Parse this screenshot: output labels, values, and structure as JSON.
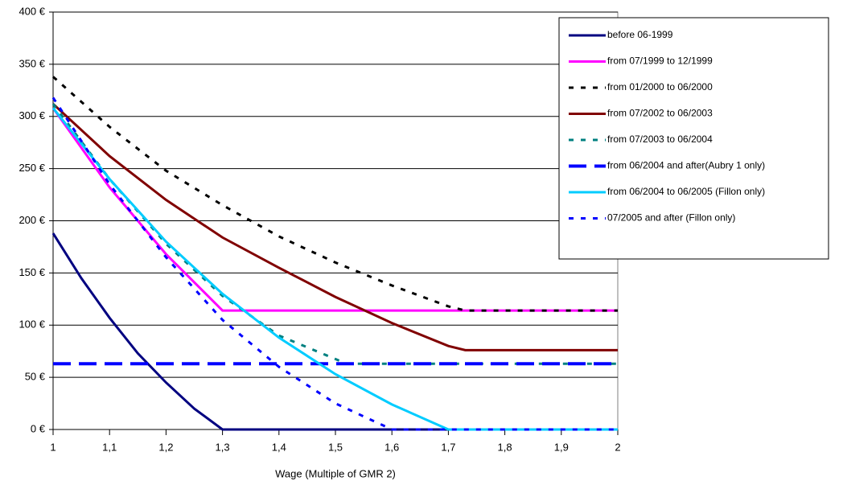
{
  "chart_data": {
    "type": "line",
    "x_label": "Wage (Multiple of GMR 2)",
    "xlim": [
      1,
      2
    ],
    "xticks": [
      1,
      {
        "value": 1.1,
        "label": "1,1"
      },
      {
        "value": 1.2,
        "label": "1,2"
      },
      {
        "value": 1.3,
        "label": "1,3"
      },
      {
        "value": 1.4,
        "label": "1,4"
      },
      {
        "value": 1.5,
        "label": "1,5"
      },
      {
        "value": 1.6,
        "label": "1,6"
      },
      {
        "value": 1.7,
        "label": "1,7"
      },
      {
        "value": 1.8,
        "label": "1,8"
      },
      {
        "value": 1.9,
        "label": "1,9"
      },
      2
    ],
    "ylim": [
      0,
      400
    ],
    "yticks": [
      {
        "value": 0,
        "label": "0 €"
      },
      {
        "value": 50,
        "label": "50 €"
      },
      {
        "value": 100,
        "label": "100 €"
      },
      {
        "value": 150,
        "label": "150 €"
      },
      {
        "value": 200,
        "label": "200 €"
      },
      {
        "value": 250,
        "label": "250 €"
      },
      {
        "value": 300,
        "label": "300 €"
      },
      {
        "value": 350,
        "label": "350 €"
      },
      {
        "value": 400,
        "label": "400 €"
      }
    ],
    "grid": true,
    "legend": "top-right",
    "series": [
      {
        "name": "before 06-1999",
        "color": "#000080",
        "dash": "solid",
        "x": [
          1,
          1.05,
          1.1,
          1.15,
          1.2,
          1.25,
          1.3,
          2
        ],
        "values": [
          188,
          145,
          107,
          73,
          45,
          20,
          0,
          0
        ]
      },
      {
        "name": "from 07/1999 to 12/1999",
        "color": "#ff00ff",
        "dash": "solid",
        "x": [
          1,
          1.1,
          1.2,
          1.3,
          2
        ],
        "values": [
          308,
          232,
          168,
          114,
          114
        ]
      },
      {
        "name": "from 01/2000 to 06/2000",
        "color": "#000000",
        "dash": "dotted",
        "x": [
          1,
          1.1,
          1.2,
          1.3,
          1.4,
          1.5,
          1.6,
          1.7,
          1.73,
          2
        ],
        "values": [
          338,
          290,
          248,
          215,
          185,
          160,
          138,
          118,
          114,
          114
        ]
      },
      {
        "name": "from 07/2002 to 06/2003",
        "color": "#800000",
        "dash": "solid",
        "x": [
          1,
          1.1,
          1.2,
          1.3,
          1.4,
          1.5,
          1.6,
          1.7,
          1.73,
          2
        ],
        "values": [
          312,
          262,
          220,
          184,
          155,
          127,
          102,
          80,
          76,
          76
        ]
      },
      {
        "name": "from 07/2003 to 06/2004",
        "color": "#008080",
        "dash": "dotted",
        "x": [
          1,
          1.1,
          1.2,
          1.3,
          1.4,
          1.52,
          2
        ],
        "values": [
          312,
          240,
          178,
          128,
          90,
          63,
          63
        ]
      },
      {
        "name": "from 06/2004 and after(Aubry 1 only)",
        "color": "#0000ff",
        "dash": "dashed",
        "x": [
          1,
          2
        ],
        "values": [
          63,
          63
        ]
      },
      {
        "name": "from 06/2004 to 06/2005 (Fillon only)",
        "color": "#00ccff",
        "dash": "solid",
        "x": [
          1,
          1.1,
          1.2,
          1.3,
          1.4,
          1.5,
          1.6,
          1.7,
          2
        ],
        "values": [
          308,
          240,
          180,
          130,
          88,
          53,
          24,
          0,
          0
        ]
      },
      {
        "name": "07/2005 and after (Fillon only)",
        "color": "#0000ff",
        "dash": "dotted",
        "x": [
          1,
          1.1,
          1.2,
          1.3,
          1.4,
          1.5,
          1.6,
          2
        ],
        "values": [
          318,
          235,
          165,
          105,
          60,
          25,
          0,
          0
        ]
      }
    ]
  }
}
